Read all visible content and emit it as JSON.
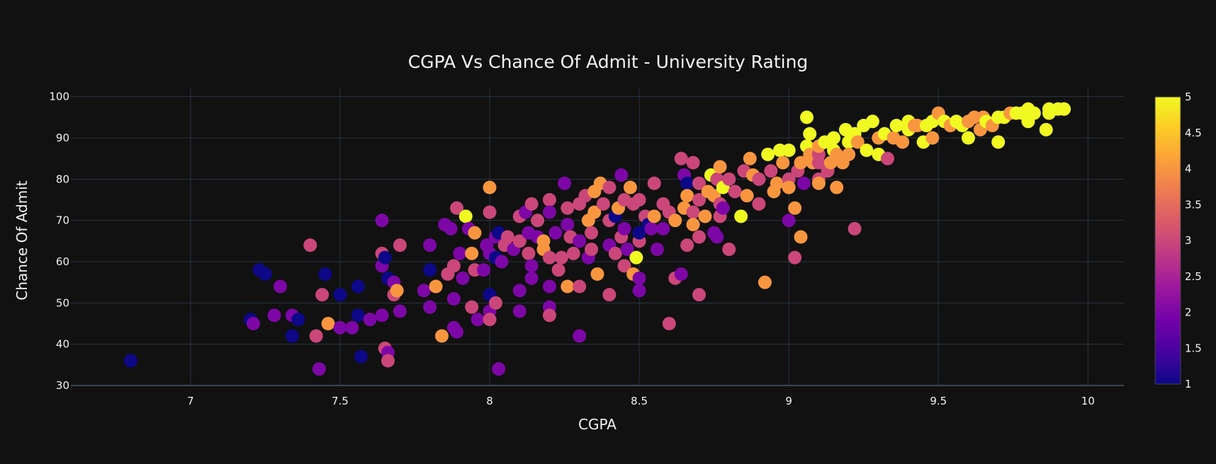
{
  "chart_data": {
    "type": "scatter",
    "title": "CGPA Vs Chance Of Admit - University Rating",
    "xlabel": "CGPA",
    "ylabel": "Chance Of Admit",
    "xlim": [
      6.6,
      10.12
    ],
    "ylim": [
      30,
      102
    ],
    "xticks": [
      7,
      7.5,
      8,
      8.5,
      9,
      9.5,
      10
    ],
    "yticks": [
      30,
      40,
      50,
      60,
      70,
      80,
      90,
      100
    ],
    "grid": true,
    "colorbar": {
      "title": "",
      "range": [
        1,
        5
      ],
      "ticks": [
        1,
        1.5,
        2,
        2.5,
        3,
        3.5,
        4,
        4.5,
        5
      ],
      "colorscale": [
        "#0d0887",
        "#46039f",
        "#7201a8",
        "#9c179e",
        "#bd3786",
        "#d8576b",
        "#ed7953",
        "#fb9f3a",
        "#fdca26",
        "#f0f921"
      ]
    },
    "color_dimension": "University Rating",
    "points": [
      [
        6.8,
        36,
        1
      ],
      [
        7.2,
        46,
        1
      ],
      [
        7.21,
        45,
        2
      ],
      [
        7.23,
        58,
        1
      ],
      [
        7.25,
        57,
        1
      ],
      [
        7.28,
        47,
        2
      ],
      [
        7.3,
        54,
        2
      ],
      [
        7.34,
        47,
        2
      ],
      [
        7.34,
        42,
        1
      ],
      [
        7.36,
        46,
        1
      ],
      [
        7.4,
        64,
        3
      ],
      [
        7.42,
        42,
        3
      ],
      [
        7.43,
        34,
        2
      ],
      [
        7.44,
        52,
        3
      ],
      [
        7.45,
        57,
        1
      ],
      [
        7.46,
        45,
        4
      ],
      [
        7.5,
        52,
        1
      ],
      [
        7.5,
        44,
        2
      ],
      [
        7.54,
        44,
        2
      ],
      [
        7.56,
        54,
        1
      ],
      [
        7.56,
        47,
        1
      ],
      [
        7.57,
        37,
        1
      ],
      [
        7.6,
        46,
        2
      ],
      [
        7.64,
        70,
        2
      ],
      [
        7.64,
        62,
        3
      ],
      [
        7.64,
        59,
        2
      ],
      [
        7.65,
        61,
        1
      ],
      [
        7.65,
        39,
        3
      ],
      [
        7.66,
        56,
        1
      ],
      [
        7.66,
        38,
        2
      ],
      [
        7.66,
        36,
        3
      ],
      [
        7.68,
        55,
        2
      ],
      [
        7.68,
        52,
        3
      ],
      [
        7.69,
        53,
        4
      ],
      [
        7.7,
        64,
        3
      ],
      [
        7.7,
        48,
        2
      ],
      [
        7.64,
        47,
        2
      ],
      [
        7.78,
        53,
        2
      ],
      [
        7.8,
        64,
        2
      ],
      [
        7.8,
        58,
        1
      ],
      [
        7.8,
        49,
        2
      ],
      [
        7.82,
        54,
        4
      ],
      [
        7.84,
        42,
        4
      ],
      [
        7.85,
        69,
        2
      ],
      [
        7.86,
        57,
        3
      ],
      [
        7.87,
        68,
        2
      ],
      [
        7.88,
        59,
        3
      ],
      [
        7.88,
        51,
        2
      ],
      [
        7.88,
        44,
        2
      ],
      [
        7.89,
        73,
        3
      ],
      [
        7.89,
        43,
        2
      ],
      [
        7.9,
        62,
        2
      ],
      [
        7.91,
        56,
        2
      ],
      [
        7.92,
        71,
        5
      ],
      [
        7.93,
        68,
        2
      ],
      [
        7.94,
        62,
        4
      ],
      [
        7.94,
        49,
        3
      ],
      [
        7.95,
        67,
        4
      ],
      [
        7.95,
        58,
        3
      ],
      [
        7.96,
        46,
        2
      ],
      [
        7.98,
        58,
        2
      ],
      [
        7.99,
        64,
        2
      ],
      [
        8.0,
        78,
        4
      ],
      [
        8.0,
        72,
        3
      ],
      [
        8.0,
        62,
        2
      ],
      [
        8.0,
        52,
        1
      ],
      [
        8.0,
        48,
        2
      ],
      [
        8.0,
        46,
        3
      ],
      [
        8.02,
        66,
        2
      ],
      [
        8.02,
        61,
        1
      ],
      [
        8.02,
        50,
        3
      ],
      [
        8.03,
        34,
        2
      ],
      [
        8.03,
        67,
        1
      ],
      [
        8.04,
        60,
        2
      ],
      [
        8.05,
        64,
        3
      ],
      [
        8.06,
        66,
        3
      ],
      [
        8.08,
        63,
        2
      ],
      [
        8.1,
        71,
        3
      ],
      [
        8.1,
        65,
        3
      ],
      [
        8.1,
        53,
        2
      ],
      [
        8.1,
        48,
        2
      ],
      [
        8.12,
        72,
        2
      ],
      [
        8.13,
        67,
        2
      ],
      [
        8.13,
        62,
        3
      ],
      [
        8.14,
        74,
        3
      ],
      [
        8.14,
        59,
        2
      ],
      [
        8.14,
        56,
        2
      ],
      [
        8.16,
        70,
        3
      ],
      [
        8.16,
        66,
        2
      ],
      [
        8.18,
        63,
        4
      ],
      [
        8.18,
        65,
        4
      ],
      [
        8.2,
        75,
        3
      ],
      [
        8.2,
        72,
        2
      ],
      [
        8.2,
        61,
        3
      ],
      [
        8.2,
        54,
        2
      ],
      [
        8.2,
        49,
        2
      ],
      [
        8.2,
        47,
        3
      ],
      [
        8.22,
        67,
        2
      ],
      [
        8.23,
        58,
        3
      ],
      [
        8.24,
        61,
        3
      ],
      [
        8.25,
        79,
        2
      ],
      [
        8.26,
        73,
        3
      ],
      [
        8.26,
        69,
        2
      ],
      [
        8.26,
        54,
        4
      ],
      [
        8.27,
        66,
        3
      ],
      [
        8.28,
        62,
        3
      ],
      [
        8.3,
        74,
        3
      ],
      [
        8.3,
        65,
        2
      ],
      [
        8.3,
        54,
        3
      ],
      [
        8.3,
        42,
        2
      ],
      [
        8.32,
        76,
        3
      ],
      [
        8.33,
        70,
        4
      ],
      [
        8.33,
        61,
        2
      ],
      [
        8.34,
        67,
        3
      ],
      [
        8.34,
        63,
        3
      ],
      [
        8.35,
        77,
        4
      ],
      [
        8.35,
        72,
        4
      ],
      [
        8.36,
        57,
        4
      ],
      [
        8.37,
        79,
        4
      ],
      [
        8.38,
        74,
        3
      ],
      [
        8.4,
        78,
        3
      ],
      [
        8.4,
        70,
        3
      ],
      [
        8.4,
        64,
        2
      ],
      [
        8.4,
        52,
        3
      ],
      [
        8.42,
        71,
        1
      ],
      [
        8.42,
        62,
        3
      ],
      [
        8.43,
        73,
        4
      ],
      [
        8.44,
        81,
        2
      ],
      [
        8.44,
        66,
        3
      ],
      [
        8.45,
        75,
        3
      ],
      [
        8.45,
        68,
        2
      ],
      [
        8.45,
        59,
        3
      ],
      [
        8.46,
        63,
        2
      ],
      [
        8.47,
        78,
        4
      ],
      [
        8.48,
        57,
        4
      ],
      [
        8.48,
        74,
        3
      ],
      [
        8.49,
        61,
        5
      ],
      [
        8.5,
        75,
        3
      ],
      [
        8.5,
        65,
        3
      ],
      [
        8.5,
        56,
        2
      ],
      [
        8.5,
        53,
        2
      ],
      [
        8.5,
        67,
        1
      ],
      [
        8.52,
        71,
        3
      ],
      [
        8.53,
        69,
        1
      ],
      [
        8.54,
        68,
        2
      ],
      [
        8.55,
        79,
        3
      ],
      [
        8.55,
        71,
        4
      ],
      [
        8.56,
        63,
        2
      ],
      [
        8.58,
        74,
        3
      ],
      [
        8.58,
        68,
        2
      ],
      [
        8.6,
        45,
        3
      ],
      [
        8.6,
        72,
        3
      ],
      [
        8.62,
        70,
        4
      ],
      [
        8.62,
        56,
        3
      ],
      [
        8.64,
        85,
        3
      ],
      [
        8.64,
        57,
        2
      ],
      [
        8.65,
        81,
        2
      ],
      [
        8.65,
        73,
        4
      ],
      [
        8.66,
        79,
        1
      ],
      [
        8.66,
        76,
        4
      ],
      [
        8.66,
        64,
        3
      ],
      [
        8.68,
        84,
        3
      ],
      [
        8.68,
        72,
        3
      ],
      [
        8.68,
        69,
        4
      ],
      [
        8.7,
        79,
        3
      ],
      [
        8.7,
        75,
        3
      ],
      [
        8.7,
        66,
        3
      ],
      [
        8.7,
        52,
        3
      ],
      [
        8.72,
        71,
        4
      ],
      [
        8.73,
        77,
        4
      ],
      [
        8.74,
        81,
        5
      ],
      [
        8.75,
        76,
        4
      ],
      [
        8.75,
        67,
        2
      ],
      [
        8.76,
        66,
        2
      ],
      [
        8.76,
        80,
        3
      ],
      [
        8.77,
        83,
        4
      ],
      [
        8.77,
        74,
        3
      ],
      [
        8.77,
        71,
        3
      ],
      [
        8.78,
        78,
        5
      ],
      [
        8.78,
        73,
        2
      ],
      [
        8.8,
        63,
        3
      ],
      [
        8.8,
        80,
        3
      ],
      [
        8.82,
        77,
        3
      ],
      [
        8.84,
        71,
        5
      ],
      [
        8.85,
        82,
        3
      ],
      [
        8.86,
        76,
        4
      ],
      [
        8.87,
        85,
        4
      ],
      [
        8.88,
        81,
        4
      ],
      [
        8.9,
        80,
        3
      ],
      [
        8.9,
        74,
        3
      ],
      [
        8.92,
        55,
        4
      ],
      [
        8.93,
        86,
        5
      ],
      [
        8.94,
        82,
        3
      ],
      [
        8.95,
        77,
        4
      ],
      [
        8.96,
        79,
        4
      ],
      [
        8.97,
        87,
        5
      ],
      [
        8.98,
        84,
        4
      ],
      [
        9.0,
        87,
        5
      ],
      [
        9.0,
        80,
        3
      ],
      [
        9.0,
        78,
        4
      ],
      [
        9.0,
        70,
        2
      ],
      [
        9.02,
        61,
        3
      ],
      [
        9.02,
        73,
        4
      ],
      [
        9.03,
        82,
        3
      ],
      [
        9.04,
        66,
        4
      ],
      [
        9.04,
        84,
        4
      ],
      [
        9.05,
        79,
        2
      ],
      [
        9.06,
        95,
        5
      ],
      [
        9.06,
        88,
        5
      ],
      [
        9.07,
        91,
        5
      ],
      [
        9.07,
        86,
        4
      ],
      [
        9.08,
        84,
        4
      ],
      [
        9.1,
        80,
        3
      ],
      [
        9.1,
        79,
        4
      ],
      [
        9.1,
        84,
        3
      ],
      [
        9.1,
        86,
        3
      ],
      [
        9.1,
        88,
        4
      ],
      [
        9.12,
        89,
        5
      ],
      [
        9.13,
        82,
        3
      ],
      [
        9.14,
        84,
        4
      ],
      [
        9.15,
        87,
        5
      ],
      [
        9.15,
        90,
        5
      ],
      [
        9.16,
        78,
        4
      ],
      [
        9.16,
        86,
        4
      ],
      [
        9.18,
        84,
        4
      ],
      [
        9.19,
        92,
        5
      ],
      [
        9.2,
        89,
        5
      ],
      [
        9.2,
        86,
        4
      ],
      [
        9.22,
        68,
        3
      ],
      [
        9.22,
        91,
        5
      ],
      [
        9.23,
        89,
        4
      ],
      [
        9.25,
        93,
        5
      ],
      [
        9.26,
        87,
        5
      ],
      [
        9.28,
        94,
        5
      ],
      [
        9.3,
        86,
        5
      ],
      [
        9.3,
        90,
        4
      ],
      [
        9.32,
        91,
        5
      ],
      [
        9.33,
        85,
        3
      ],
      [
        9.35,
        90,
        4
      ],
      [
        9.36,
        93,
        5
      ],
      [
        9.38,
        89,
        4
      ],
      [
        9.4,
        92,
        5
      ],
      [
        9.4,
        94,
        5
      ],
      [
        9.42,
        93,
        4
      ],
      [
        9.43,
        93,
        4
      ],
      [
        9.45,
        89,
        5
      ],
      [
        9.46,
        93,
        5
      ],
      [
        9.48,
        94,
        5
      ],
      [
        9.48,
        90,
        4
      ],
      [
        9.5,
        96,
        4
      ],
      [
        9.52,
        94,
        5
      ],
      [
        9.54,
        93,
        4
      ],
      [
        9.56,
        94,
        5
      ],
      [
        9.58,
        93,
        5
      ],
      [
        9.6,
        90,
        5
      ],
      [
        9.6,
        94,
        4
      ],
      [
        9.62,
        95,
        4
      ],
      [
        9.64,
        92,
        4
      ],
      [
        9.65,
        95,
        4
      ],
      [
        9.66,
        94,
        5
      ],
      [
        9.68,
        93,
        4
      ],
      [
        9.7,
        95,
        5
      ],
      [
        9.7,
        89,
        5
      ],
      [
        9.72,
        95,
        5
      ],
      [
        9.74,
        96,
        4
      ],
      [
        9.76,
        96,
        5
      ],
      [
        9.78,
        96,
        5
      ],
      [
        9.8,
        97,
        5
      ],
      [
        9.8,
        94,
        5
      ],
      [
        9.82,
        96,
        5
      ],
      [
        9.86,
        92,
        5
      ],
      [
        9.87,
        96,
        5
      ],
      [
        9.87,
        97,
        5
      ],
      [
        9.9,
        97,
        5
      ],
      [
        9.92,
        97,
        4
      ],
      [
        9.92,
        97,
        5
      ]
    ]
  }
}
